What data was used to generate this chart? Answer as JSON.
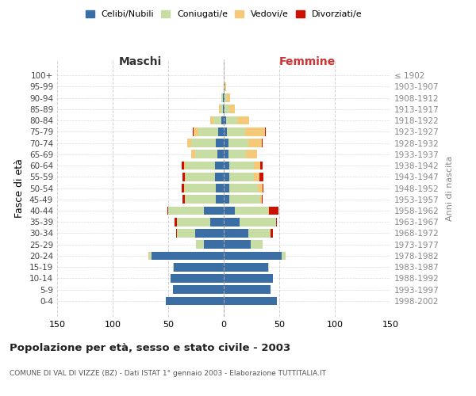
{
  "age_groups": [
    "100+",
    "95-99",
    "90-94",
    "85-89",
    "80-84",
    "75-79",
    "70-74",
    "65-69",
    "60-64",
    "55-59",
    "50-54",
    "45-49",
    "40-44",
    "35-39",
    "30-34",
    "25-29",
    "20-24",
    "15-19",
    "10-14",
    "5-9",
    "0-4"
  ],
  "birth_years": [
    "≤ 1902",
    "1903-1907",
    "1908-1912",
    "1913-1917",
    "1918-1922",
    "1923-1927",
    "1928-1932",
    "1933-1937",
    "1938-1942",
    "1943-1947",
    "1948-1952",
    "1953-1957",
    "1958-1962",
    "1963-1967",
    "1968-1972",
    "1973-1977",
    "1978-1982",
    "1983-1987",
    "1988-1992",
    "1993-1997",
    "1998-2002"
  ],
  "male": {
    "celibi": [
      0,
      0,
      1,
      1,
      2,
      5,
      7,
      6,
      8,
      8,
      7,
      7,
      18,
      12,
      26,
      18,
      65,
      45,
      48,
      46,
      52
    ],
    "coniugati": [
      0,
      0,
      1,
      2,
      7,
      18,
      22,
      20,
      26,
      26,
      28,
      28,
      32,
      30,
      16,
      7,
      2,
      1,
      0,
      0,
      0
    ],
    "vedovi": [
      0,
      0,
      0,
      1,
      3,
      4,
      4,
      3,
      2,
      1,
      1,
      0,
      0,
      0,
      0,
      0,
      1,
      0,
      0,
      0,
      0
    ],
    "divorziati": [
      0,
      0,
      0,
      0,
      0,
      1,
      0,
      0,
      2,
      2,
      2,
      2,
      1,
      2,
      1,
      0,
      0,
      0,
      0,
      0,
      0
    ]
  },
  "female": {
    "nubili": [
      0,
      1,
      1,
      1,
      2,
      3,
      4,
      4,
      5,
      5,
      5,
      5,
      10,
      14,
      22,
      24,
      52,
      40,
      44,
      42,
      48
    ],
    "coniugate": [
      0,
      0,
      2,
      4,
      10,
      16,
      18,
      16,
      22,
      22,
      26,
      28,
      30,
      33,
      20,
      11,
      4,
      1,
      0,
      0,
      0
    ],
    "vedove": [
      0,
      1,
      3,
      5,
      11,
      18,
      12,
      10,
      6,
      5,
      4,
      1,
      1,
      0,
      0,
      0,
      0,
      0,
      0,
      0,
      0
    ],
    "divorziate": [
      0,
      0,
      0,
      0,
      0,
      1,
      1,
      0,
      2,
      4,
      1,
      1,
      8,
      1,
      2,
      0,
      0,
      0,
      0,
      0,
      0
    ]
  },
  "colors": {
    "celibi": "#3a6ea5",
    "coniugati": "#c8dda4",
    "vedovi": "#f5c97a",
    "divorziati": "#cc1100"
  },
  "title": "Popolazione per età, sesso e stato civile - 2003",
  "subtitle": "COMUNE DI VAL DI VIZZE (BZ) - Dati ISTAT 1° gennaio 2003 - Elaborazione TUTTITALIA.IT",
  "ylabel": "Fasce di età",
  "ylabel_right": "Anni di nascita",
  "xlabel_left": "Maschi",
  "xlabel_right": "Femmine",
  "xlim": 150,
  "background_color": "#ffffff",
  "grid_color": "#cccccc"
}
